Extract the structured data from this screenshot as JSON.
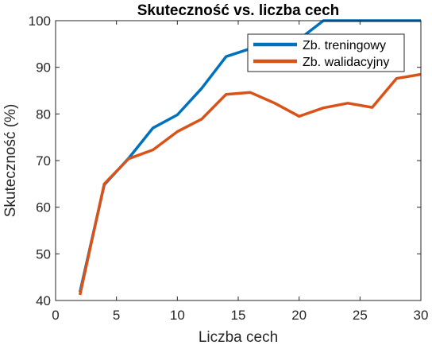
{
  "chart_data": {
    "type": "line",
    "title": "Skuteczność vs. liczba cech",
    "xlabel": "Liczba cech",
    "ylabel": "Skuteczność (%)",
    "xlim": [
      0,
      30
    ],
    "ylim": [
      40,
      100
    ],
    "xticks": [
      0,
      5,
      10,
      15,
      20,
      25,
      30
    ],
    "yticks": [
      40,
      50,
      60,
      70,
      80,
      90,
      100
    ],
    "grid": false,
    "legend_position": "top-right",
    "x": [
      2,
      4,
      6,
      8,
      10,
      12,
      14,
      16,
      18,
      20,
      22,
      24,
      26,
      28,
      30
    ],
    "series": [
      {
        "name": "Zb. treningowy",
        "color": "#0072BD",
        "values": [
          41.8,
          64.8,
          70.5,
          77.0,
          79.8,
          85.5,
          92.3,
          94.0,
          95.2,
          96.0,
          100,
          100,
          100,
          100,
          100
        ]
      },
      {
        "name": "Zb. walidacyjny",
        "color": "#D95319",
        "values": [
          41.2,
          65.0,
          70.4,
          72.3,
          76.2,
          78.9,
          84.2,
          84.6,
          82.3,
          79.5,
          81.3,
          82.3,
          81.4,
          87.6,
          88.5
        ]
      }
    ]
  }
}
